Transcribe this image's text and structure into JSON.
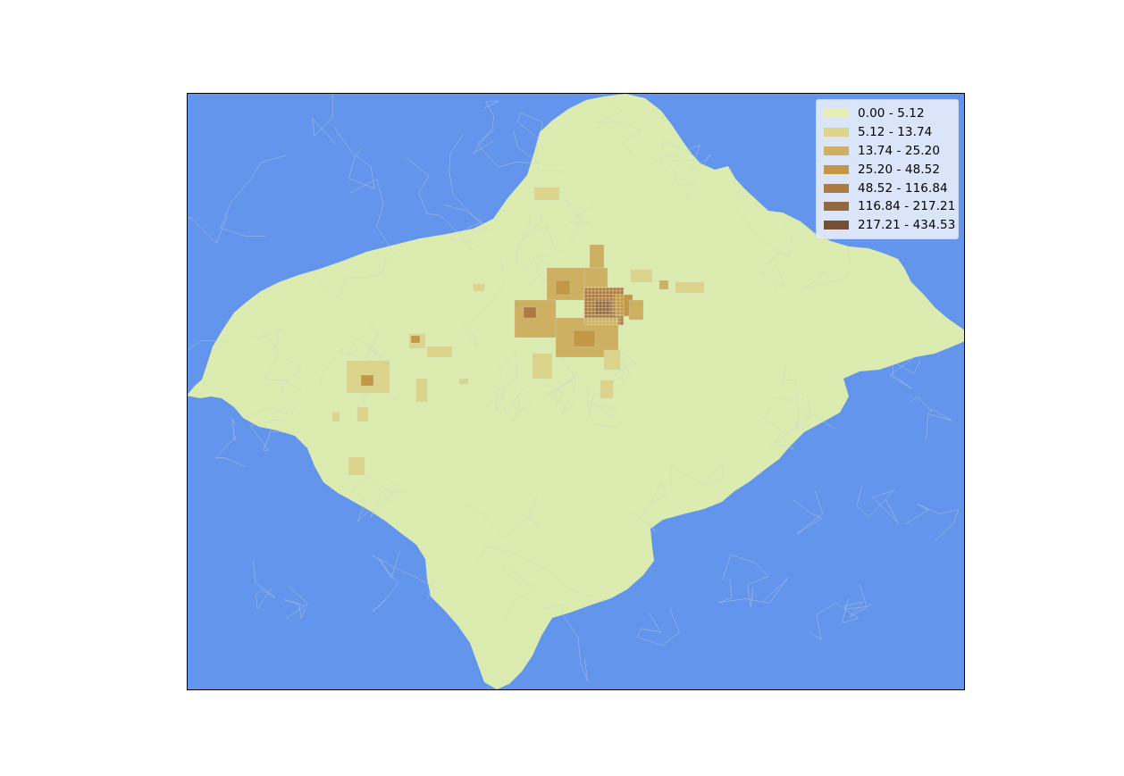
{
  "map": {
    "ocean_color": "#6495ED",
    "land_color": "#DCEBB0",
    "frame_color": "#000000",
    "boundary_color": "#C9D6CF"
  },
  "legend": {
    "placement": "top-right",
    "items": [
      {
        "label": "0.00 - 5.12",
        "color": "#E5EFB4"
      },
      {
        "label": "5.12 - 13.74",
        "color": "#DDD48C"
      },
      {
        "label": "13.74 - 25.20",
        "color": "#CDB062"
      },
      {
        "label": "25.20 - 48.52",
        "color": "#C29745"
      },
      {
        "label": "48.52 - 116.84",
        "color": "#AB7A42"
      },
      {
        "label": "116.84 - 217.21",
        "color": "#93683E"
      },
      {
        "label": "217.21 - 434.53",
        "color": "#754E36"
      }
    ]
  }
}
